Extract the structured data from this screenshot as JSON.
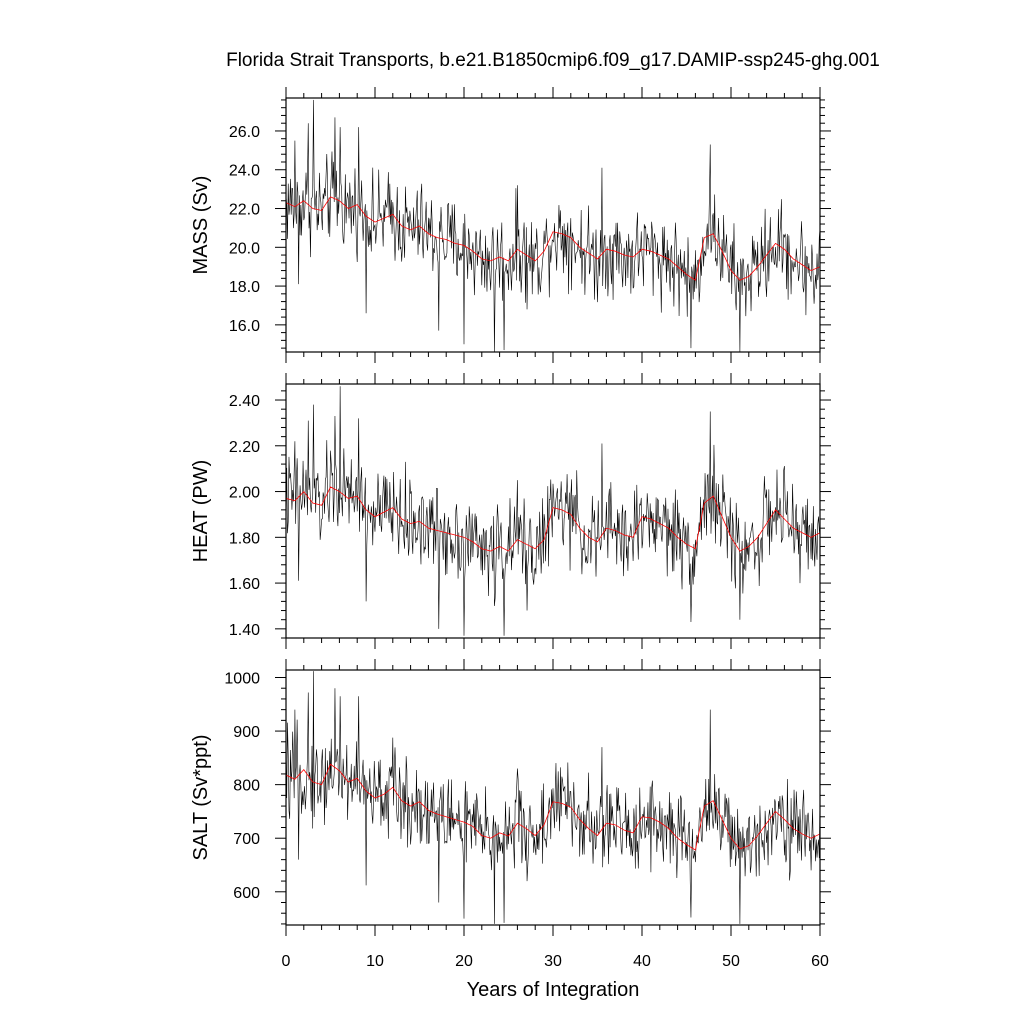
{
  "chart_data": {
    "type": "line",
    "title": "Florida Strait Transports, b.e21.B1850cmip6.f09_g17.DAMIP-ssp245-ghg.001",
    "xlabel": "Years of Integration",
    "xlim": [
      0,
      60
    ],
    "xticks": [
      0,
      10,
      20,
      30,
      40,
      50,
      60
    ],
    "xtick_labels": [
      "0",
      "10",
      "20",
      "30",
      "40",
      "50",
      "60"
    ],
    "colors": {
      "raw": "#000000",
      "smooth": "#ff0000"
    },
    "smooth_x": [
      0,
      1,
      2,
      3,
      4,
      5,
      6,
      7,
      8,
      9,
      10,
      11,
      12,
      13,
      14,
      15,
      16,
      17,
      18,
      19,
      20,
      21,
      22,
      23,
      24,
      25,
      26,
      27,
      28,
      29,
      30,
      31,
      32,
      33,
      34,
      35,
      36,
      37,
      38,
      39,
      40,
      41,
      42,
      43,
      44,
      45,
      46,
      47,
      48,
      49,
      50,
      51,
      52,
      53,
      54,
      55,
      56,
      57,
      58,
      59,
      60
    ],
    "panels": [
      {
        "name": "mass",
        "ylabel": "MASS (Sv)",
        "ylim": [
          14.6,
          27.7
        ],
        "yticks": [
          16,
          18,
          20,
          22,
          24,
          26
        ],
        "ytick_labels": [
          "16.0",
          "18.0",
          "20.0",
          "22.0",
          "24.0",
          "26.0"
        ],
        "smooth": [
          22.3,
          22.1,
          22.4,
          22.0,
          21.9,
          22.6,
          22.4,
          22.0,
          22.2,
          21.6,
          21.3,
          21.5,
          21.7,
          21.1,
          20.9,
          21.1,
          20.7,
          20.5,
          20.4,
          20.2,
          20.1,
          19.8,
          19.4,
          19.3,
          19.5,
          19.3,
          19.9,
          19.6,
          19.3,
          19.8,
          20.8,
          20.7,
          20.5,
          20.0,
          19.7,
          19.4,
          19.9,
          19.8,
          19.6,
          19.5,
          19.9,
          19.8,
          19.6,
          19.4,
          19.0,
          18.6,
          18.3,
          20.5,
          20.7,
          19.8,
          18.8,
          18.3,
          18.5,
          19.0,
          19.6,
          20.2,
          19.9,
          19.4,
          19.1,
          18.8,
          19.0
        ],
        "spikes_up": [
          [
            1.0,
            25.5
          ],
          [
            2.5,
            26.4
          ],
          [
            3.1,
            27.6
          ],
          [
            5.5,
            26.7
          ],
          [
            6.1,
            26.2
          ],
          [
            8.2,
            26.2
          ],
          [
            26.0,
            23.2
          ],
          [
            35.5,
            24.1
          ],
          [
            47.7,
            25.3
          ]
        ],
        "spikes_down": [
          [
            1.4,
            18.1
          ],
          [
            9.0,
            16.6
          ],
          [
            17.2,
            15.7
          ],
          [
            20.0,
            15.0
          ],
          [
            23.4,
            14.6
          ],
          [
            24.5,
            14.7
          ],
          [
            27.1,
            16.8
          ],
          [
            45.5,
            14.8
          ],
          [
            51.0,
            14.6
          ]
        ]
      },
      {
        "name": "heat",
        "ylabel": "HEAT (PW)",
        "ylim": [
          1.36,
          2.47
        ],
        "yticks": [
          1.4,
          1.6,
          1.8,
          2.0,
          2.2,
          2.4
        ],
        "ytick_labels": [
          "1.40",
          "1.60",
          "1.80",
          "2.00",
          "2.20",
          "2.40"
        ],
        "smooth": [
          1.97,
          1.96,
          2.0,
          1.95,
          1.94,
          2.02,
          2.0,
          1.97,
          1.98,
          1.92,
          1.89,
          1.91,
          1.93,
          1.88,
          1.86,
          1.87,
          1.84,
          1.83,
          1.82,
          1.81,
          1.8,
          1.78,
          1.75,
          1.74,
          1.76,
          1.74,
          1.79,
          1.77,
          1.75,
          1.79,
          1.93,
          1.92,
          1.9,
          1.84,
          1.8,
          1.78,
          1.84,
          1.83,
          1.81,
          1.8,
          1.89,
          1.88,
          1.86,
          1.84,
          1.8,
          1.77,
          1.75,
          1.95,
          1.98,
          1.89,
          1.8,
          1.74,
          1.76,
          1.8,
          1.86,
          1.92,
          1.88,
          1.84,
          1.82,
          1.8,
          1.82
        ],
        "spikes_up": [
          [
            1.0,
            2.22
          ],
          [
            2.5,
            2.31
          ],
          [
            3.1,
            2.38
          ],
          [
            5.5,
            2.33
          ],
          [
            6.1,
            2.46
          ],
          [
            8.2,
            2.32
          ],
          [
            26.0,
            2.05
          ],
          [
            35.5,
            2.21
          ],
          [
            47.7,
            2.35
          ]
        ],
        "spikes_down": [
          [
            1.4,
            1.61
          ],
          [
            9.0,
            1.52
          ],
          [
            17.2,
            1.4
          ],
          [
            20.0,
            1.37
          ],
          [
            23.4,
            1.5
          ],
          [
            24.5,
            1.37
          ],
          [
            27.1,
            1.48
          ],
          [
            45.5,
            1.43
          ],
          [
            51.0,
            1.44
          ]
        ]
      },
      {
        "name": "salt",
        "ylabel": "SALT (Sv*ppt)",
        "ylim": [
          538,
          1014
        ],
        "yticks": [
          600,
          700,
          800,
          900,
          1000
        ],
        "ytick_labels": [
          "600",
          "700",
          "800",
          "900",
          "1000"
        ],
        "smooth": [
          818,
          810,
          828,
          805,
          800,
          838,
          826,
          805,
          812,
          788,
          775,
          782,
          795,
          770,
          760,
          768,
          752,
          745,
          740,
          735,
          730,
          722,
          705,
          700,
          710,
          704,
          728,
          718,
          705,
          725,
          768,
          765,
          758,
          735,
          718,
          705,
          728,
          725,
          715,
          710,
          740,
          738,
          730,
          718,
          700,
          688,
          678,
          760,
          770,
          735,
          700,
          680,
          686,
          705,
          728,
          750,
          735,
          718,
          708,
          700,
          708
        ],
        "spikes_up": [
          [
            1.0,
            940
          ],
          [
            2.5,
            972
          ],
          [
            3.1,
            1012
          ],
          [
            5.5,
            980
          ],
          [
            6.1,
            965
          ],
          [
            8.2,
            965
          ],
          [
            26.0,
            830
          ],
          [
            35.5,
            870
          ],
          [
            47.7,
            940
          ]
        ],
        "spikes_down": [
          [
            1.4,
            660
          ],
          [
            9.0,
            612
          ],
          [
            17.2,
            580
          ],
          [
            20.0,
            550
          ],
          [
            23.4,
            540
          ],
          [
            24.5,
            542
          ],
          [
            27.1,
            620
          ],
          [
            45.5,
            552
          ],
          [
            51.0,
            540
          ]
        ]
      }
    ]
  }
}
